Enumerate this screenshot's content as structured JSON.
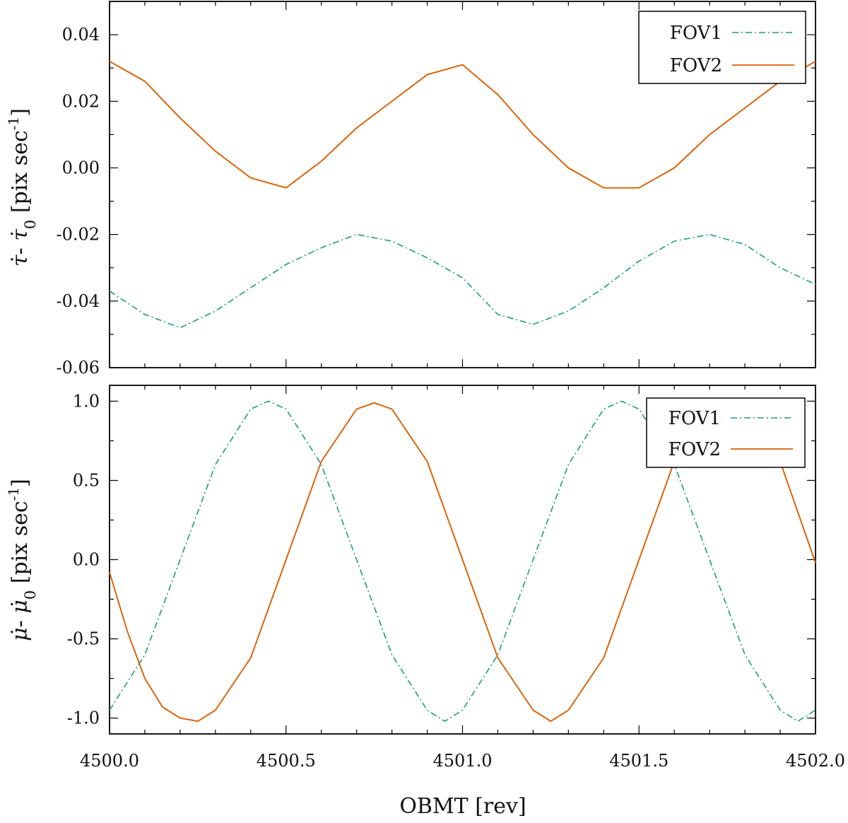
{
  "colors": {
    "fov1": "#1b9e77",
    "fov2": "#d95f02",
    "axis": "#000000"
  },
  "chart_data": [
    {
      "type": "line",
      "ylabel": "τ̇ - τ̇0 [pix sec-1]",
      "ylabel_parts": {
        "sym": "τ̇",
        "dash": "- ",
        "sym0": "τ̇",
        "sub": "0",
        "unit": " [pix sec",
        "sup": "-1",
        "close": "]"
      },
      "xlim": [
        4500.0,
        4502.0
      ],
      "ylim": [
        -0.06,
        0.05
      ],
      "y_ticks": [
        -0.06,
        -0.04,
        -0.02,
        0.0,
        0.02,
        0.04
      ],
      "y_tick_labels": [
        "-0.06",
        "-0.04",
        "-0.02",
        "0.00",
        "0.02",
        "0.04"
      ],
      "legend_position": "top-right",
      "series": [
        {
          "name": "FOV1",
          "style": "dash-dot",
          "x": [
            4500.0,
            4500.1,
            4500.2,
            4500.3,
            4500.4,
            4500.5,
            4500.6,
            4500.7,
            4500.8,
            4500.9,
            4501.0,
            4501.1,
            4501.2,
            4501.3,
            4501.4,
            4501.5,
            4501.6,
            4501.7,
            4501.8,
            4501.9,
            4502.0
          ],
          "values": [
            -0.037,
            -0.044,
            -0.048,
            -0.043,
            -0.036,
            -0.029,
            -0.024,
            -0.02,
            -0.022,
            -0.027,
            -0.033,
            -0.044,
            -0.047,
            -0.043,
            -0.036,
            -0.028,
            -0.022,
            -0.02,
            -0.023,
            -0.03,
            -0.035
          ]
        },
        {
          "name": "FOV2",
          "style": "solid",
          "x": [
            4500.0,
            4500.1,
            4500.2,
            4500.3,
            4500.4,
            4500.5,
            4500.6,
            4500.7,
            4500.8,
            4500.9,
            4501.0,
            4501.1,
            4501.2,
            4501.3,
            4501.4,
            4501.5,
            4501.6,
            4501.7,
            4501.8,
            4501.9,
            4502.0
          ],
          "values": [
            0.032,
            0.026,
            0.015,
            0.005,
            -0.003,
            -0.006,
            0.002,
            0.012,
            0.02,
            0.028,
            0.031,
            0.022,
            0.01,
            0.0,
            -0.006,
            -0.006,
            0.0,
            0.01,
            0.018,
            0.026,
            0.032
          ]
        }
      ]
    },
    {
      "type": "line",
      "xlabel": "OBMT [rev]",
      "ylabel": "μ̇ - μ̇0 [pix sec-1]",
      "ylabel_parts": {
        "sym": "μ̇",
        "dash": "- ",
        "sym0": "μ̇",
        "sub": "0",
        "unit": " [pix sec",
        "sup": "-1",
        "close": "]"
      },
      "xlim": [
        4500.0,
        4502.0
      ],
      "ylim": [
        -1.1,
        1.1
      ],
      "x_ticks": [
        4500.0,
        4500.5,
        4501.0,
        4501.5,
        4502.0
      ],
      "x_tick_labels": [
        "4500.0",
        "4500.5",
        "4501.0",
        "4501.5",
        "4502.0"
      ],
      "y_ticks": [
        -1.0,
        -0.5,
        0.0,
        0.5,
        1.0
      ],
      "y_tick_labels": [
        "-1.0",
        "-0.5",
        "0.0",
        "0.5",
        "1.0"
      ],
      "legend_position": "top-right",
      "series": [
        {
          "name": "FOV1",
          "style": "dash-dot",
          "x": [
            4500.0,
            4500.1,
            4500.2,
            4500.3,
            4500.4,
            4500.45,
            4500.5,
            4500.6,
            4500.7,
            4500.8,
            4500.9,
            4500.95,
            4501.0,
            4501.1,
            4501.2,
            4501.3,
            4501.4,
            4501.45,
            4501.5,
            4501.6,
            4501.7,
            4501.8,
            4501.9,
            4501.95,
            4502.0
          ],
          "values": [
            -0.95,
            -0.6,
            0.0,
            0.6,
            0.95,
            1.0,
            0.95,
            0.6,
            0.0,
            -0.6,
            -0.95,
            -1.02,
            -0.95,
            -0.6,
            0.0,
            0.6,
            0.95,
            1.0,
            0.95,
            0.6,
            0.0,
            -0.6,
            -0.95,
            -1.02,
            -0.95
          ]
        },
        {
          "name": "FOV2",
          "style": "solid",
          "x": [
            4500.0,
            4500.05,
            4500.1,
            4500.15,
            4500.2,
            4500.25,
            4500.3,
            4500.4,
            4500.5,
            4500.6,
            4500.7,
            4500.75,
            4500.8,
            4500.9,
            4501.0,
            4501.1,
            4501.2,
            4501.25,
            4501.3,
            4501.4,
            4501.5,
            4501.6,
            4501.7,
            4501.75,
            4501.8,
            4501.9,
            4502.0
          ],
          "values": [
            -0.08,
            -0.45,
            -0.75,
            -0.93,
            -1.0,
            -1.02,
            -0.95,
            -0.62,
            0.0,
            0.62,
            0.95,
            0.99,
            0.95,
            0.62,
            0.0,
            -0.62,
            -0.95,
            -1.02,
            -0.95,
            -0.62,
            0.0,
            0.62,
            0.95,
            1.0,
            0.95,
            0.62,
            -0.02
          ]
        }
      ]
    }
  ]
}
